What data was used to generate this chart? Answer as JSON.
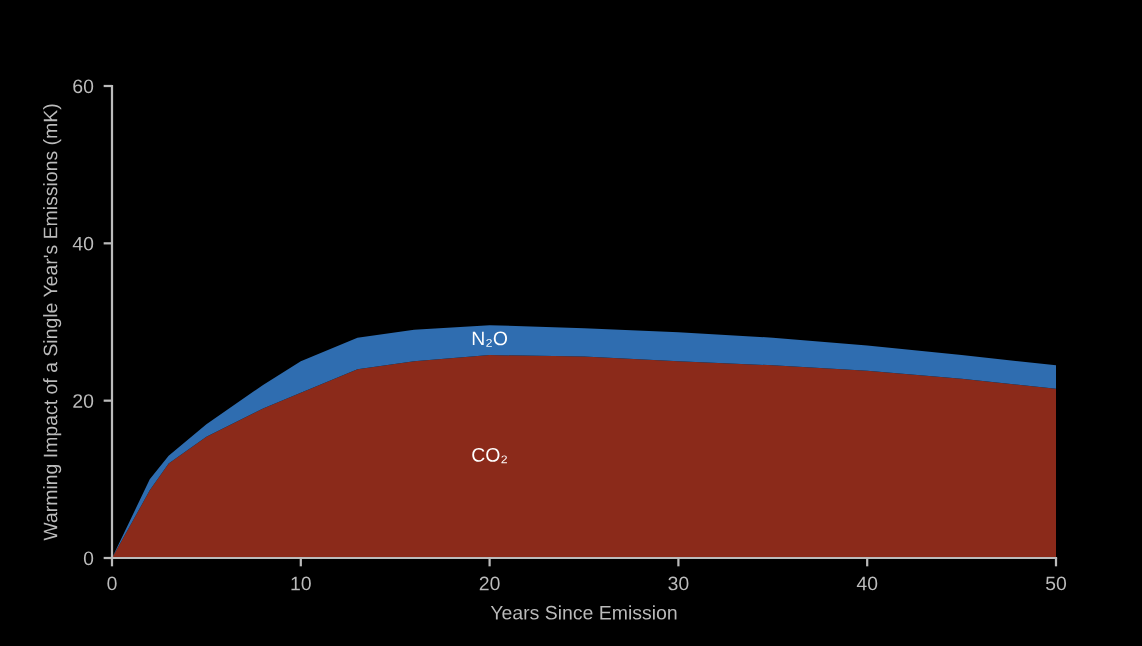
{
  "chart_data": {
    "type": "area",
    "stacked": true,
    "xlabel": "Years Since Emission",
    "ylabel": "Warming Impact of a Single Year's Emissions (mK)",
    "x": [
      0,
      1,
      2,
      3,
      5,
      8,
      10,
      13,
      16,
      20,
      25,
      30,
      35,
      40,
      45,
      50
    ],
    "series": [
      {
        "name": "CO₂",
        "color": "#8b2a1a",
        "values": [
          0,
          4.3,
          8.6,
          12,
          15.4,
          19,
          21,
          24,
          25,
          25.8,
          25.6,
          25,
          24.5,
          23.8,
          22.8,
          21.5
        ]
      },
      {
        "name": "N₂O",
        "color": "#2f6db0",
        "values": [
          0,
          0.7,
          1.4,
          1,
          1.6,
          3,
          4,
          4,
          4,
          3.8,
          3.6,
          3.7,
          3.5,
          3.2,
          3,
          3
        ]
      }
    ],
    "xlim": [
      0,
      50
    ],
    "ylim": [
      0,
      60
    ],
    "xticks": [
      0,
      10,
      20,
      30,
      40,
      50
    ],
    "yticks": [
      0,
      20,
      40,
      60
    ],
    "grid": false,
    "legend": false
  }
}
